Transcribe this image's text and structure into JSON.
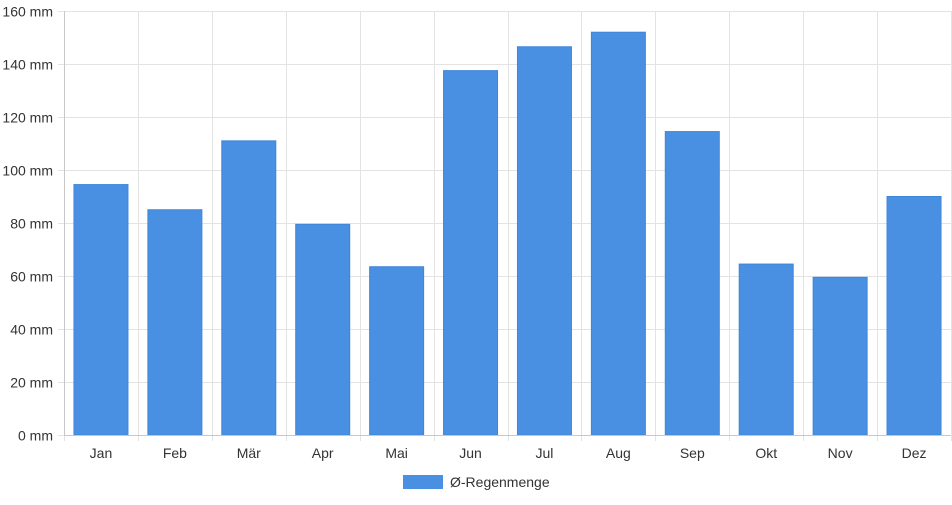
{
  "chart_data": {
    "type": "bar",
    "categories": [
      "Jan",
      "Feb",
      "Mär",
      "Apr",
      "Mai",
      "Jun",
      "Jul",
      "Aug",
      "Sep",
      "Okt",
      "Nov",
      "Dez"
    ],
    "series": [
      {
        "name": "Ø-Regenmenge",
        "color": "#4a90e2",
        "values": [
          94.5,
          85,
          111,
          79.5,
          63.5,
          137.5,
          146.5,
          152,
          114.5,
          64.5,
          59.5,
          90
        ]
      }
    ],
    "title": "",
    "xlabel": "",
    "ylabel": "",
    "ylim": [
      0,
      160
    ],
    "y_ticks": [
      0,
      20,
      40,
      60,
      80,
      100,
      120,
      140,
      160
    ],
    "y_unit": "mm",
    "grid": true,
    "legend_position": "bottom-center"
  }
}
